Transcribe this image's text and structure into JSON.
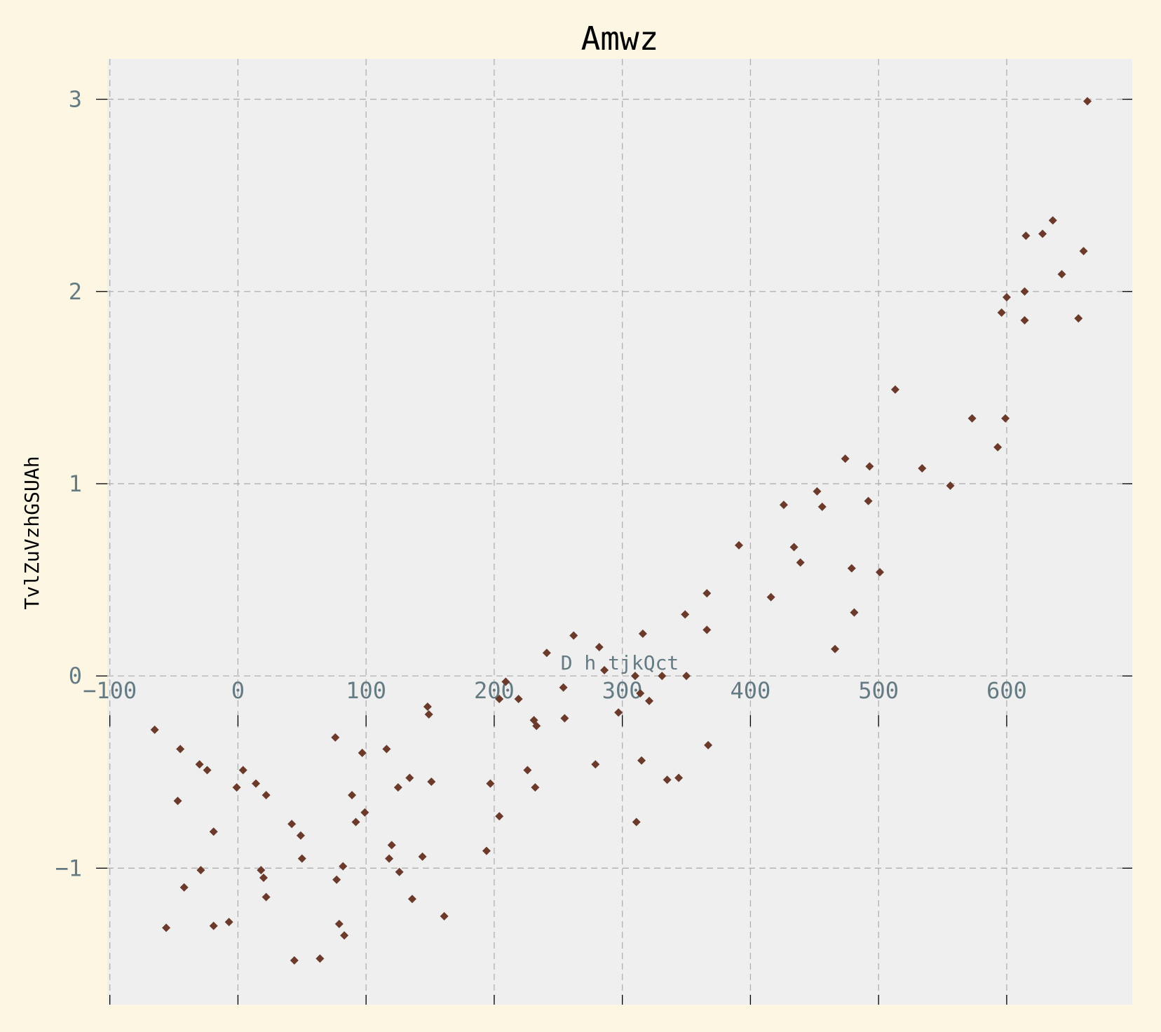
{
  "chart_data": {
    "type": "scatter",
    "title": "Amwz",
    "xlabel": "D h tjkQct",
    "ylabel": "TvlZuVzhGSUAh",
    "xlim": [
      -102,
      698
    ],
    "ylim": [
      -1.71,
      3.21
    ],
    "xticks": [
      -100,
      0,
      100,
      200,
      300,
      400,
      500,
      600
    ],
    "yticks": [
      -1,
      0,
      1,
      2,
      3
    ],
    "xtick_labels": [
      "−100",
      "0",
      "100",
      "200",
      "300",
      "400",
      "500",
      "600"
    ],
    "ytick_labels": [
      "−1",
      "0",
      "1",
      "2",
      "3"
    ],
    "grid": true,
    "colors": {
      "background": "#fdf6e3",
      "plot_area": "#efefef",
      "marker": "#6b3a2a",
      "grid": "#b0b0b0",
      "tick_text": "#657b83"
    },
    "points": [
      {
        "x": -65,
        "y": -0.28
      },
      {
        "x": -56,
        "y": -1.31
      },
      {
        "x": -45,
        "y": -0.38
      },
      {
        "x": -47,
        "y": -0.65
      },
      {
        "x": -42,
        "y": -1.1
      },
      {
        "x": -30,
        "y": -0.46
      },
      {
        "x": -29,
        "y": -1.01
      },
      {
        "x": -24,
        "y": -0.49
      },
      {
        "x": -19,
        "y": -0.81
      },
      {
        "x": -19,
        "y": -1.3
      },
      {
        "x": -7,
        "y": -1.28
      },
      {
        "x": -1,
        "y": -0.58
      },
      {
        "x": 4,
        "y": -0.49
      },
      {
        "x": 14,
        "y": -0.56
      },
      {
        "x": 18,
        "y": -1.01
      },
      {
        "x": 20,
        "y": -1.05
      },
      {
        "x": 22,
        "y": -0.62
      },
      {
        "x": 22,
        "y": -1.15
      },
      {
        "x": 42,
        "y": -0.77
      },
      {
        "x": 44,
        "y": -1.48
      },
      {
        "x": 49,
        "y": -0.83
      },
      {
        "x": 50,
        "y": -0.95
      },
      {
        "x": 64,
        "y": -1.47
      },
      {
        "x": 76,
        "y": -0.32
      },
      {
        "x": 77,
        "y": -1.06
      },
      {
        "x": 79,
        "y": -1.29
      },
      {
        "x": 82,
        "y": -0.99
      },
      {
        "x": 83,
        "y": -1.35
      },
      {
        "x": 89,
        "y": -0.62
      },
      {
        "x": 92,
        "y": -0.76
      },
      {
        "x": 97,
        "y": -0.4
      },
      {
        "x": 99,
        "y": -0.71
      },
      {
        "x": 116,
        "y": -0.38
      },
      {
        "x": 118,
        "y": -0.95
      },
      {
        "x": 120,
        "y": -0.88
      },
      {
        "x": 125,
        "y": -0.58
      },
      {
        "x": 126,
        "y": -1.02
      },
      {
        "x": 134,
        "y": -0.53
      },
      {
        "x": 136,
        "y": -1.16
      },
      {
        "x": 144,
        "y": -0.94
      },
      {
        "x": 148,
        "y": -0.16
      },
      {
        "x": 149,
        "y": -0.2
      },
      {
        "x": 151,
        "y": -0.55
      },
      {
        "x": 161,
        "y": -1.25
      },
      {
        "x": 194,
        "y": -0.91
      },
      {
        "x": 197,
        "y": -0.56
      },
      {
        "x": 204,
        "y": -0.12
      },
      {
        "x": 204,
        "y": -0.73
      },
      {
        "x": 209,
        "y": -0.03
      },
      {
        "x": 219,
        "y": -0.12
      },
      {
        "x": 226,
        "y": -0.49
      },
      {
        "x": 231,
        "y": -0.23
      },
      {
        "x": 232,
        "y": -0.58
      },
      {
        "x": 233,
        "y": -0.26
      },
      {
        "x": 241,
        "y": 0.12
      },
      {
        "x": 254,
        "y": -0.06
      },
      {
        "x": 255,
        "y": -0.22
      },
      {
        "x": 262,
        "y": 0.21
      },
      {
        "x": 279,
        "y": -0.46
      },
      {
        "x": 282,
        "y": 0.15
      },
      {
        "x": 286,
        "y": 0.03
      },
      {
        "x": 297,
        "y": -0.19
      },
      {
        "x": 310,
        "y": 0.0
      },
      {
        "x": 311,
        "y": -0.76
      },
      {
        "x": 314,
        "y": -0.09
      },
      {
        "x": 315,
        "y": -0.44
      },
      {
        "x": 316,
        "y": 0.22
      },
      {
        "x": 321,
        "y": -0.13
      },
      {
        "x": 331,
        "y": 0.0
      },
      {
        "x": 335,
        "y": -0.54
      },
      {
        "x": 344,
        "y": -0.53
      },
      {
        "x": 349,
        "y": 0.32
      },
      {
        "x": 350,
        "y": 0.0
      },
      {
        "x": 366,
        "y": 0.43
      },
      {
        "x": 366,
        "y": 0.24
      },
      {
        "x": 367,
        "y": -0.36
      },
      {
        "x": 391,
        "y": 0.68
      },
      {
        "x": 416,
        "y": 0.41
      },
      {
        "x": 426,
        "y": 0.89
      },
      {
        "x": 434,
        "y": 0.67
      },
      {
        "x": 439,
        "y": 0.59
      },
      {
        "x": 452,
        "y": 0.96
      },
      {
        "x": 456,
        "y": 0.88
      },
      {
        "x": 466,
        "y": 0.14
      },
      {
        "x": 474,
        "y": 1.13
      },
      {
        "x": 479,
        "y": 0.56
      },
      {
        "x": 481,
        "y": 0.33
      },
      {
        "x": 492,
        "y": 0.91
      },
      {
        "x": 493,
        "y": 1.09
      },
      {
        "x": 501,
        "y": 0.54
      },
      {
        "x": 513,
        "y": 1.49
      },
      {
        "x": 534,
        "y": 1.08
      },
      {
        "x": 556,
        "y": 0.99
      },
      {
        "x": 573,
        "y": 1.34
      },
      {
        "x": 593,
        "y": 1.19
      },
      {
        "x": 596,
        "y": 1.89
      },
      {
        "x": 599,
        "y": 1.34
      },
      {
        "x": 600,
        "y": 1.97
      },
      {
        "x": 614,
        "y": 2.0
      },
      {
        "x": 614,
        "y": 1.85
      },
      {
        "x": 615,
        "y": 2.29
      },
      {
        "x": 628,
        "y": 2.3
      },
      {
        "x": 636,
        "y": 2.37
      },
      {
        "x": 643,
        "y": 2.09
      },
      {
        "x": 656,
        "y": 1.86
      },
      {
        "x": 660,
        "y": 2.21
      },
      {
        "x": 663,
        "y": 2.99
      }
    ]
  }
}
